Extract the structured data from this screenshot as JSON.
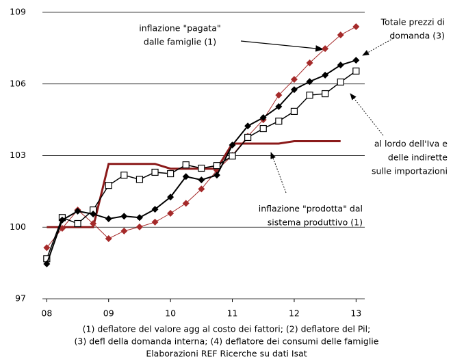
{
  "chart_data": {
    "type": "line",
    "x": [
      8,
      8.25,
      8.5,
      8.75,
      9,
      9.25,
      9.5,
      9.75,
      10,
      10.25,
      10.5,
      10.75,
      11,
      11.25,
      11.5,
      11.75,
      12,
      12.25,
      12.5,
      12.75,
      13
    ],
    "series": [
      {
        "color": "#8b1a1a",
        "marker": "none",
        "width": 3,
        "values": [
          100,
          100,
          100,
          100,
          102.65,
          102.65,
          102.65,
          102.65,
          102.45,
          102.45,
          102.45,
          102.45,
          103.5,
          103.5,
          103.5,
          103.5,
          103.6,
          103.6,
          103.6,
          103.6,
          null
        ]
      },
      {
        "color": "#a52a2a",
        "marker": "diamond",
        "width": 1,
        "values": [
          99.14,
          99.95,
          100.72,
          100.15,
          99.52,
          99.84,
          100.01,
          100.21,
          100.58,
          101.0,
          101.6,
          102.38,
          103.01,
          103.81,
          104.5,
          105.53,
          106.19,
          106.88,
          107.48,
          108.05,
          108.4
        ]
      },
      {
        "color": "#000000",
        "marker": "square",
        "width": 1.5,
        "values": [
          98.68,
          100.4,
          100.15,
          100.72,
          101.75,
          102.18,
          102.0,
          102.3,
          102.24,
          102.61,
          102.47,
          102.58,
          102.98,
          103.76,
          104.13,
          104.44,
          104.85,
          105.53,
          105.59,
          106.08,
          106.54
        ]
      },
      {
        "color": "#000000",
        "marker": "diamond",
        "width": 2,
        "values": [
          98.46,
          100.3,
          100.67,
          100.55,
          100.35,
          100.46,
          100.4,
          100.75,
          101.26,
          102.12,
          101.98,
          102.18,
          103.44,
          104.24,
          104.59,
          105.05,
          105.76,
          106.1,
          106.37,
          106.79,
          106.99
        ]
      }
    ],
    "xlim": [
      7.93,
      13.14
    ],
    "xticks": [
      {
        "value": 8,
        "label": "08"
      },
      {
        "value": 9,
        "label": "09"
      },
      {
        "value": 10,
        "label": "10"
      },
      {
        "value": 11,
        "label": "11"
      },
      {
        "value": 12,
        "label": "12"
      },
      {
        "value": 13,
        "label": "13"
      }
    ],
    "ylim": [
      97,
      109
    ],
    "yticks": [
      97,
      100,
      103,
      106,
      109
    ],
    "grid": true,
    "annotations": [
      {
        "lines": [
          "inflazione \"pagata\"",
          "dalle famiglie (1)"
        ]
      },
      {
        "lines": [
          "Totale prezzi di",
          "domanda (3)"
        ]
      },
      {
        "lines": [
          "al lordo dell'Iva e",
          "delle indirette",
          "sulle importazioni"
        ]
      },
      {
        "lines": [
          "inflazione \"prodotta\" dal",
          "sistema produttivo (1)"
        ]
      }
    ],
    "notes": [
      "(1) deflatore del valore agg al costo dei fattori; (2) deflatore del Pil;",
      "(3) defl della domanda interna; (4) deflatore dei consumi delle famiglie",
      "Elaborazioni REF Ricerche su dati Isat"
    ]
  }
}
